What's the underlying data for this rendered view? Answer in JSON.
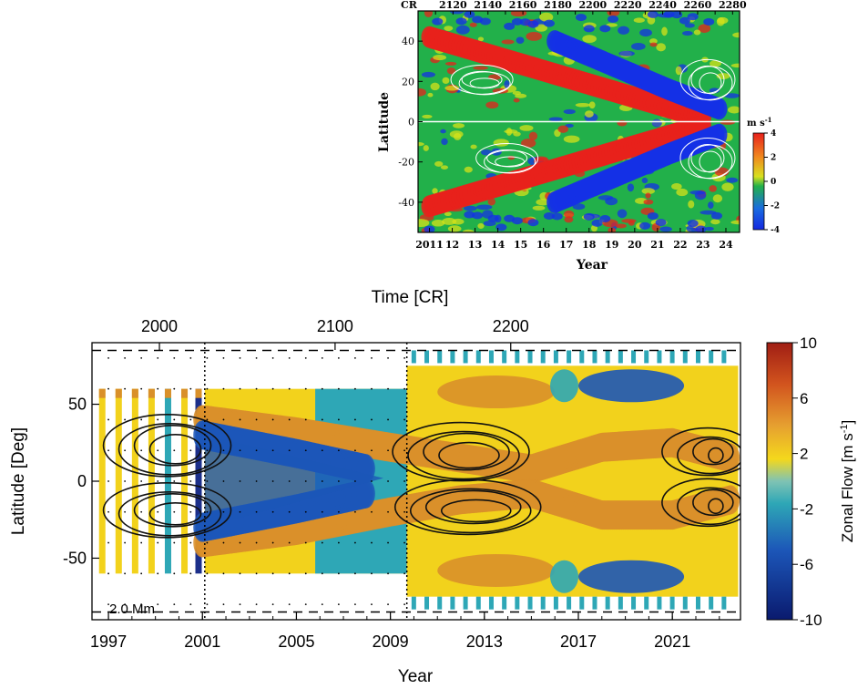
{
  "chart_data": [
    {
      "type": "heatmap",
      "panel": "top",
      "xlabel": "Year",
      "ylabel": "Latitude",
      "x_ticks": [
        "2011",
        "12",
        "13",
        "14",
        "15",
        "16",
        "17",
        "18",
        "19",
        "20",
        "21",
        "22",
        "23",
        "24"
      ],
      "x_tick_values": [
        2011,
        2012,
        2013,
        2014,
        2015,
        2016,
        2017,
        2018,
        2019,
        2020,
        2021,
        2022,
        2023,
        2024
      ],
      "top_axis_label": "CR",
      "top_ticks": [
        "2120",
        "2140",
        "2160",
        "2180",
        "2200",
        "2220",
        "2240",
        "2260",
        "2280"
      ],
      "top_tick_values": [
        2120,
        2140,
        2160,
        2180,
        2200,
        2220,
        2240,
        2260,
        2280
      ],
      "y_ticks": [
        "40",
        "20",
        "0",
        "-20",
        "-40"
      ],
      "y_tick_values": [
        40,
        20,
        0,
        -20,
        -40
      ],
      "xlim": [
        2010.5,
        2024.6
      ],
      "ylim": [
        -55,
        55
      ],
      "colorbar": {
        "label": "m s",
        "label_exp": "-1",
        "ticks": [
          "4",
          "2",
          "0",
          "-2",
          "-4"
        ],
        "tick_values": [
          4,
          2,
          0,
          -2,
          -4
        ],
        "range": [
          -4,
          4
        ]
      },
      "colors": {
        "fast": "#e8211c",
        "slow": "#1431e6",
        "mid": "#22b04a",
        "yellow": "#d6e21a"
      },
      "bands": [
        {
          "name": "north-fast",
          "t": [
            2011.0,
            2014.0,
            2017.0,
            2020.0,
            2023.0
          ],
          "lat": [
            42,
            32,
            22,
            12,
            2
          ],
          "value": 3.5
        },
        {
          "name": "north-slow",
          "t": [
            2016.5,
            2019.0,
            2021.5,
            2023.8
          ],
          "lat": [
            40,
            28,
            16,
            6
          ],
          "value": -3.5
        },
        {
          "name": "south-fast",
          "t": [
            2011.0,
            2014.0,
            2017.0,
            2020.0,
            2023.0
          ],
          "lat": [
            -42,
            -32,
            -22,
            -12,
            -2
          ],
          "value": 3.5
        },
        {
          "name": "south-slow",
          "t": [
            2016.5,
            2019.0,
            2021.5,
            2023.8
          ],
          "lat": [
            -40,
            -28,
            -16,
            -6
          ],
          "value": -3.5
        }
      ]
    },
    {
      "type": "heatmap",
      "panel": "bottom",
      "xlabel": "Year",
      "ylabel": "Latitude  [Deg]",
      "x_ticks": [
        "1997",
        "2001",
        "2005",
        "2009",
        "2013",
        "2017",
        "2021"
      ],
      "x_tick_values": [
        1997,
        2001,
        2005,
        2009,
        2013,
        2017,
        2021
      ],
      "top_axis_label": "Time [CR]",
      "top_ticks": [
        "2000",
        "2100",
        "2200"
      ],
      "top_tick_values": [
        2000,
        2100,
        2200
      ],
      "y_ticks": [
        "50",
        "0",
        "-50"
      ],
      "y_tick_values": [
        50,
        0,
        -50
      ],
      "xlim": [
        1996.3,
        2023.9
      ],
      "ylim": [
        -90,
        90
      ],
      "annotation": "2.0 Mm",
      "colorbar": {
        "label": "Zonal Flow  [m s",
        "label_exp": "-1",
        "label_close": "]",
        "ticks": [
          "10",
          "6",
          "2",
          "-2",
          "-6",
          "-10"
        ],
        "tick_values": [
          10,
          6,
          2,
          -2,
          -6,
          -10
        ],
        "range": [
          -10,
          10
        ]
      },
      "colors": {
        "fast": "#d9902a",
        "slow": "#1c56b8",
        "mid": "#2ea7b6",
        "yellow": "#f2d21c"
      },
      "bands": [
        {
          "name": "north-fast",
          "t": [
            2001.0,
            2005.0,
            2009.0,
            2012.0,
            2015.0,
            2018.0,
            2021.0,
            2023.5
          ],
          "lat": [
            40,
            32,
            22,
            15,
            8,
            22,
            25,
            15
          ],
          "value": 4
        },
        {
          "name": "north-slow",
          "t": [
            2001.0,
            2005.0,
            2008.0
          ],
          "lat": [
            30,
            18,
            8
          ],
          "value": -5
        },
        {
          "name": "south-fast",
          "t": [
            2001.0,
            2005.0,
            2009.0,
            2012.0,
            2015.0,
            2018.0,
            2021.0,
            2023.5
          ],
          "lat": [
            -40,
            -32,
            -20,
            -12,
            -8,
            -22,
            -22,
            -12
          ],
          "value": 4
        },
        {
          "name": "south-slow",
          "t": [
            2001.0,
            2005.0,
            2008.0
          ],
          "lat": [
            -30,
            -18,
            -8
          ],
          "value": -5
        }
      ]
    }
  ]
}
